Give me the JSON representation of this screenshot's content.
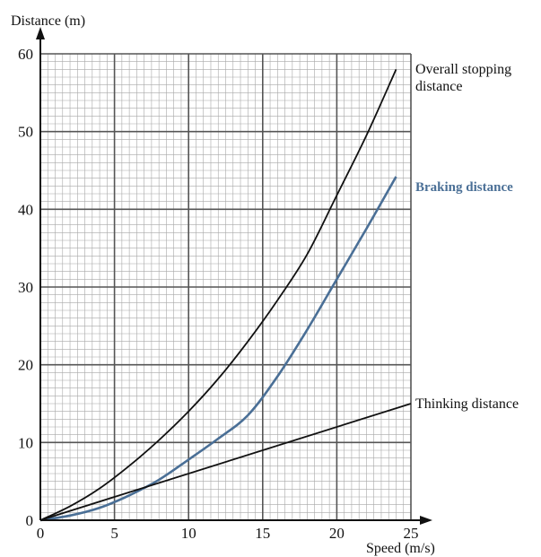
{
  "chart_data": {
    "type": "line",
    "xlabel": "Speed (m/s)",
    "ylabel": "Distance (m)",
    "xlim": [
      0,
      25
    ],
    "ylim": [
      0,
      60
    ],
    "x_ticks": [
      0,
      5,
      10,
      15,
      20,
      25
    ],
    "y_ticks": [
      0,
      10,
      20,
      30,
      40,
      50,
      60
    ],
    "grid": {
      "major_step_x": 5,
      "major_step_y": 10,
      "minor_step_x": 0.5,
      "minor_step_y": 1
    },
    "series": [
      {
        "name": "Overall stopping distance",
        "label_lines": [
          "Overall stopping",
          "distance"
        ],
        "color": "#111111",
        "x": [
          0,
          2,
          4,
          6,
          8,
          10,
          12,
          14,
          16,
          18,
          20,
          22,
          24
        ],
        "y": [
          0,
          1.8,
          4.1,
          7.0,
          10.3,
          14.0,
          18.2,
          23.0,
          28.3,
          34.2,
          41.8,
          49.5,
          58.0
        ]
      },
      {
        "name": "Braking distance",
        "label_lines": [
          "Braking distance"
        ],
        "color": "#4a6f96",
        "x": [
          0,
          2,
          4,
          6,
          8,
          10,
          12,
          14,
          16,
          18,
          20,
          22,
          24
        ],
        "y": [
          0,
          0.6,
          1.6,
          3.2,
          5.2,
          7.8,
          10.5,
          13.5,
          18.5,
          24.5,
          31.0,
          37.5,
          44.2
        ]
      },
      {
        "name": "Thinking distance",
        "label_lines": [
          "Thinking distance"
        ],
        "color": "#111111",
        "x": [
          0,
          25
        ],
        "y": [
          0,
          15
        ]
      }
    ]
  }
}
